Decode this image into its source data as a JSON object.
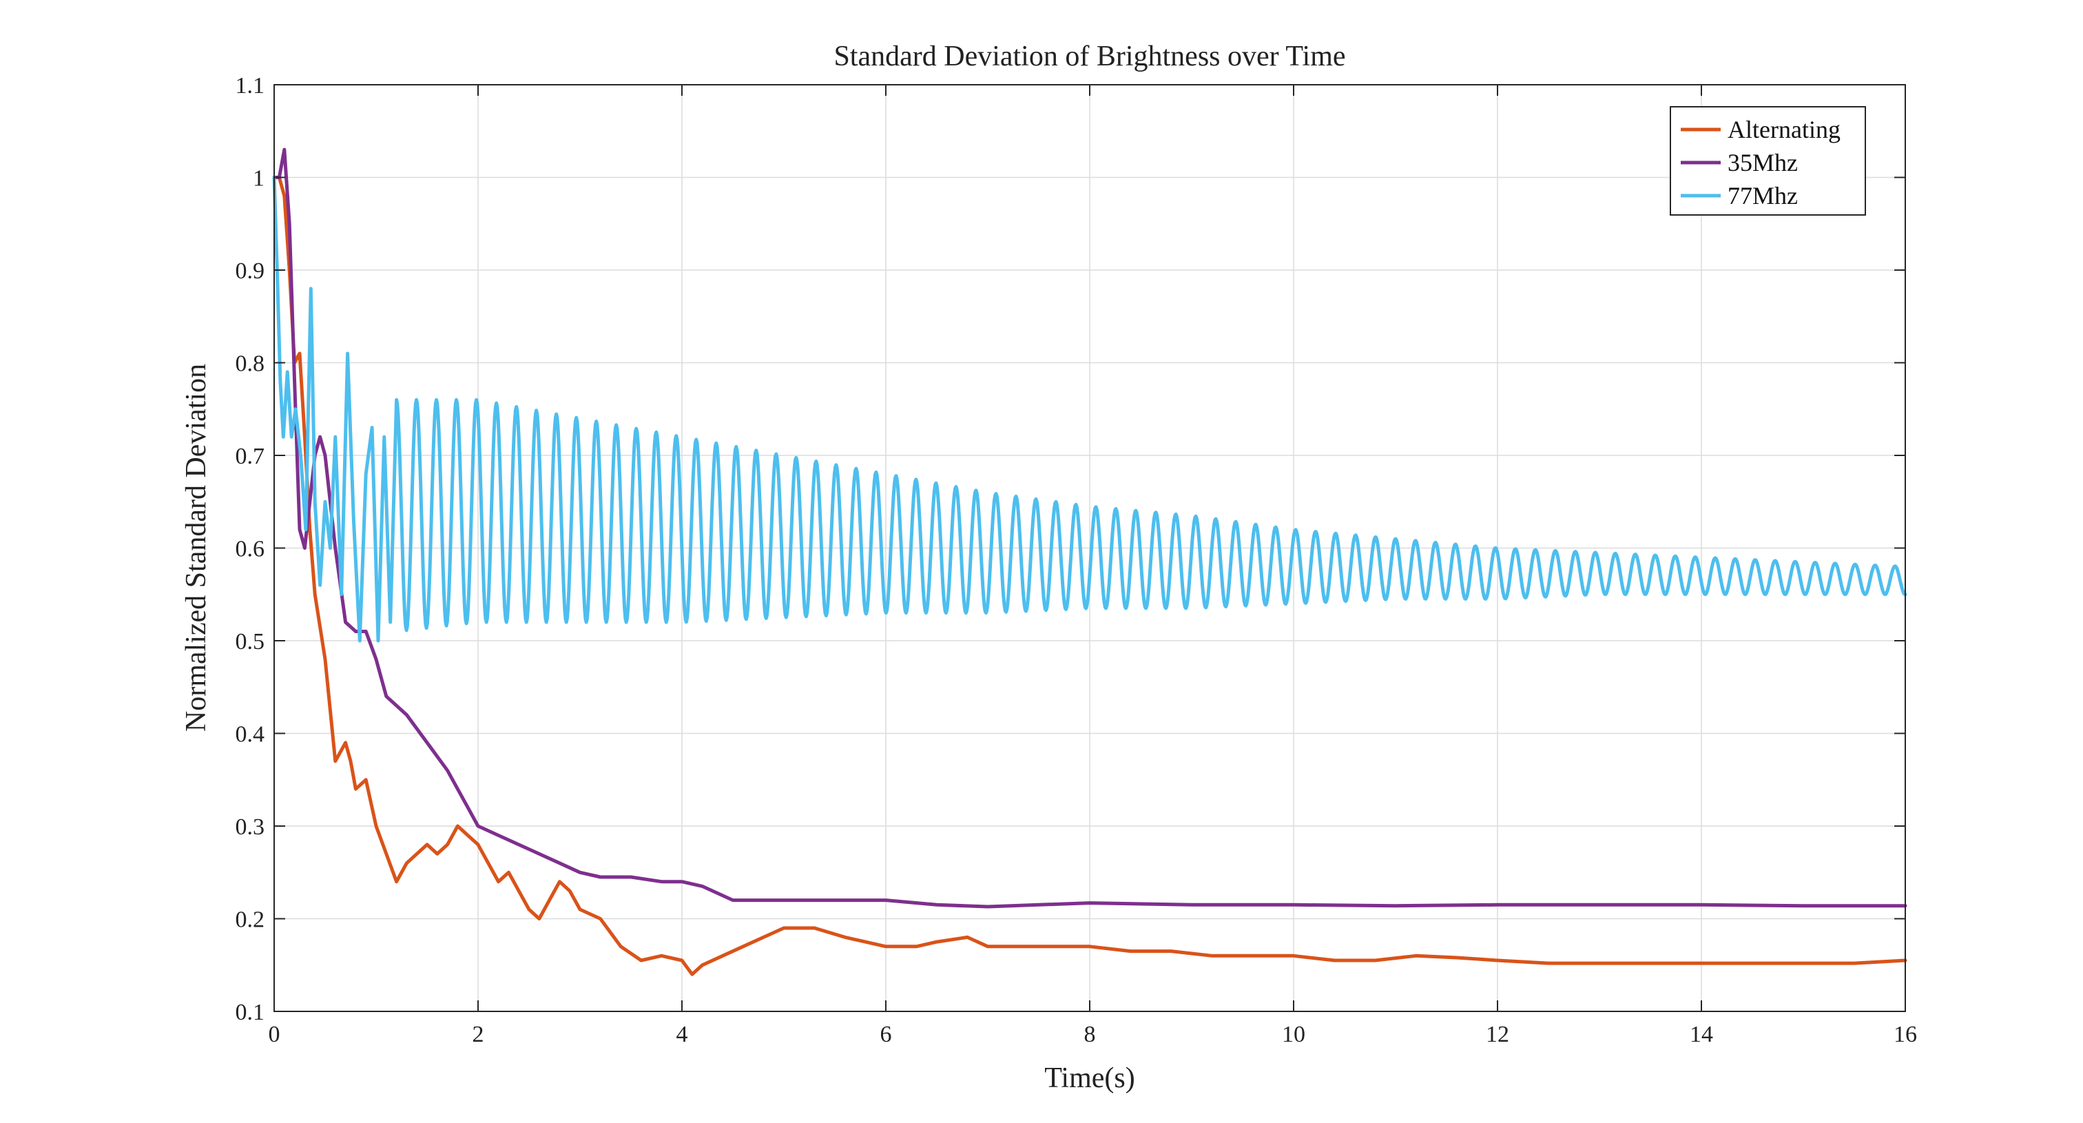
{
  "chart_data": {
    "type": "line",
    "title": "Standard Deviation of Brightness over Time",
    "xlabel": "Time(s)",
    "ylabel": "Normalized Standard Deviation",
    "xlim": [
      0,
      16
    ],
    "ylim": [
      0.1,
      1.1
    ],
    "x_ticks": [
      0,
      2,
      4,
      6,
      8,
      10,
      12,
      14,
      16
    ],
    "y_ticks": [
      0.1,
      0.2,
      0.3,
      0.4,
      0.5,
      0.6,
      0.7,
      0.8,
      0.9,
      1.0,
      1.1
    ],
    "x_tick_labels": [
      "0",
      "2",
      "4",
      "6",
      "8",
      "10",
      "12",
      "14",
      "16"
    ],
    "y_tick_labels": [
      "0.1",
      "0.2",
      "0.3",
      "0.4",
      "0.5",
      "0.6",
      "0.7",
      "0.8",
      "0.9",
      "1",
      "1.1"
    ],
    "grid": true,
    "legend_position": "top-right",
    "series": [
      {
        "name": "Alternating",
        "color": "#d95319",
        "x": [
          0,
          0.05,
          0.1,
          0.15,
          0.2,
          0.25,
          0.3,
          0.35,
          0.4,
          0.5,
          0.6,
          0.7,
          0.75,
          0.8,
          0.9,
          1.0,
          1.1,
          1.2,
          1.3,
          1.4,
          1.5,
          1.6,
          1.7,
          1.8,
          1.9,
          2.0,
          2.1,
          2.2,
          2.3,
          2.4,
          2.5,
          2.6,
          2.7,
          2.8,
          2.9,
          3.0,
          3.2,
          3.4,
          3.6,
          3.8,
          4.0,
          4.1,
          4.2,
          4.4,
          4.6,
          4.8,
          5.0,
          5.3,
          5.6,
          5.8,
          6.0,
          6.3,
          6.5,
          6.8,
          7.0,
          7.3,
          7.6,
          8.0,
          8.4,
          8.8,
          9.2,
          9.6,
          10.0,
          10.4,
          10.8,
          11.2,
          11.6,
          12.0,
          12.5,
          13.0,
          13.5,
          14.0,
          14.5,
          15.0,
          15.5,
          16.0
        ],
        "y": [
          1.0,
          1.0,
          0.98,
          0.9,
          0.8,
          0.81,
          0.72,
          0.62,
          0.55,
          0.48,
          0.37,
          0.39,
          0.37,
          0.34,
          0.35,
          0.3,
          0.27,
          0.24,
          0.26,
          0.27,
          0.28,
          0.27,
          0.28,
          0.3,
          0.29,
          0.28,
          0.26,
          0.24,
          0.25,
          0.23,
          0.21,
          0.2,
          0.22,
          0.24,
          0.23,
          0.21,
          0.2,
          0.17,
          0.155,
          0.16,
          0.155,
          0.14,
          0.15,
          0.16,
          0.17,
          0.18,
          0.19,
          0.19,
          0.18,
          0.175,
          0.17,
          0.17,
          0.175,
          0.18,
          0.17,
          0.17,
          0.17,
          0.17,
          0.165,
          0.165,
          0.16,
          0.16,
          0.16,
          0.155,
          0.155,
          0.16,
          0.158,
          0.155,
          0.152,
          0.152,
          0.152,
          0.152,
          0.152,
          0.152,
          0.152,
          0.155
        ]
      },
      {
        "name": "35Mhz",
        "color": "#7e2f8e",
        "x": [
          0,
          0.05,
          0.1,
          0.15,
          0.2,
          0.25,
          0.3,
          0.35,
          0.4,
          0.45,
          0.5,
          0.6,
          0.7,
          0.8,
          0.9,
          1.0,
          1.1,
          1.3,
          1.5,
          1.7,
          1.9,
          2.0,
          2.2,
          2.5,
          2.8,
          3.0,
          3.2,
          3.5,
          3.8,
          4.0,
          4.2,
          4.5,
          4.8,
          5.0,
          5.5,
          6.0,
          6.5,
          7.0,
          7.5,
          8.0,
          9.0,
          10.0,
          11.0,
          12.0,
          13.0,
          14.0,
          15.0,
          16.0
        ],
        "y": [
          1.0,
          1.0,
          1.03,
          0.95,
          0.78,
          0.62,
          0.6,
          0.65,
          0.7,
          0.72,
          0.7,
          0.6,
          0.52,
          0.51,
          0.51,
          0.48,
          0.44,
          0.42,
          0.39,
          0.36,
          0.32,
          0.3,
          0.29,
          0.275,
          0.26,
          0.25,
          0.245,
          0.245,
          0.24,
          0.24,
          0.235,
          0.22,
          0.22,
          0.22,
          0.22,
          0.22,
          0.215,
          0.213,
          0.215,
          0.217,
          0.215,
          0.215,
          0.214,
          0.215,
          0.215,
          0.215,
          0.214,
          0.214
        ]
      },
      {
        "name": "77Mhz",
        "color": "#4dbeee",
        "x": [
          0,
          0.03,
          0.06,
          0.09,
          0.13,
          0.17,
          0.21,
          0.26,
          0.31,
          0.36,
          0.4,
          0.45,
          0.5,
          0.55,
          0.6,
          0.66,
          0.72,
          0.78,
          0.84,
          0.9,
          0.96,
          1.02,
          1.08,
          1.14,
          1.2
        ],
        "y": [
          1.0,
          0.9,
          0.78,
          0.72,
          0.79,
          0.72,
          0.75,
          0.7,
          0.62,
          0.88,
          0.65,
          0.56,
          0.65,
          0.6,
          0.72,
          0.55,
          0.81,
          0.63,
          0.5,
          0.68,
          0.73,
          0.5,
          0.72,
          0.52,
          0.76
        ],
        "oscillation": {
          "start": 1.2,
          "end": 16.0,
          "period": 0.196,
          "peaks": [
            [
              1.2,
              0.76
            ],
            [
              2.0,
              0.76
            ],
            [
              3.0,
              0.74
            ],
            [
              4.0,
              0.72
            ],
            [
              5.0,
              0.7
            ],
            [
              6.0,
              0.68
            ],
            [
              7.0,
              0.66
            ],
            [
              8.0,
              0.645
            ],
            [
              9.0,
              0.635
            ],
            [
              10.0,
              0.62
            ],
            [
              11.0,
              0.61
            ],
            [
              12.0,
              0.6
            ],
            [
              13.0,
              0.595
            ],
            [
              14.0,
              0.59
            ],
            [
              15.0,
              0.585
            ],
            [
              16.0,
              0.58
            ]
          ],
          "troughs": [
            [
              1.2,
              0.51
            ],
            [
              2.0,
              0.52
            ],
            [
              3.0,
              0.52
            ],
            [
              4.0,
              0.52
            ],
            [
              5.0,
              0.525
            ],
            [
              6.0,
              0.53
            ],
            [
              7.0,
              0.53
            ],
            [
              8.0,
              0.535
            ],
            [
              9.0,
              0.535
            ],
            [
              10.0,
              0.54
            ],
            [
              11.0,
              0.545
            ],
            [
              12.0,
              0.545
            ],
            [
              13.0,
              0.55
            ],
            [
              14.0,
              0.55
            ],
            [
              15.0,
              0.55
            ],
            [
              16.0,
              0.55
            ]
          ]
        }
      }
    ]
  }
}
